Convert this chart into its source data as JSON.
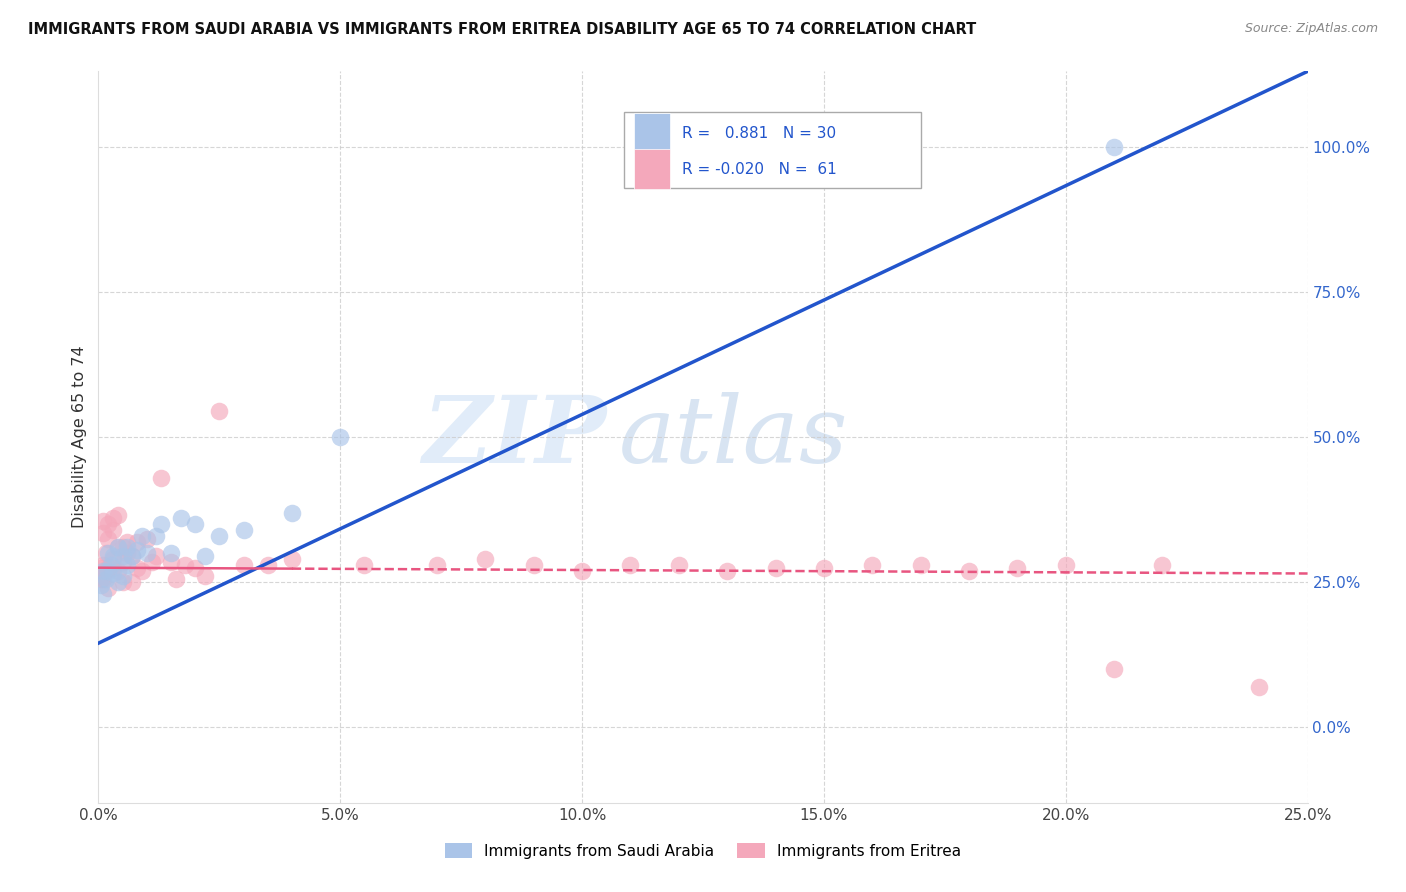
{
  "title": "IMMIGRANTS FROM SAUDI ARABIA VS IMMIGRANTS FROM ERITREA DISABILITY AGE 65 TO 74 CORRELATION CHART",
  "source": "Source: ZipAtlas.com",
  "ylabel": "Disability Age 65 to 74",
  "legend_label_blue": "Immigrants from Saudi Arabia",
  "legend_label_pink": "Immigrants from Eritrea",
  "R_blue": 0.881,
  "N_blue": 30,
  "R_pink": -0.02,
  "N_pink": 61,
  "color_blue": "#aac4e8",
  "color_pink": "#f4a8bb",
  "line_color_blue": "#2255cc",
  "line_color_pink": "#e85580",
  "xmin": 0.0,
  "xmax": 0.25,
  "ymin": -0.13,
  "ymax": 1.13,
  "watermark_zip": "ZIP",
  "watermark_atlas": "atlas",
  "ytick_positions": [
    0.0,
    0.25,
    0.5,
    0.75,
    1.0
  ],
  "ytick_labels": [
    "0.0%",
    "25.0%",
    "50.0%",
    "75.0%",
    "100.0%"
  ],
  "xtick_positions": [
    0.0,
    0.05,
    0.1,
    0.15,
    0.2,
    0.25
  ],
  "xtick_labels": [
    "0.0%",
    "5.0%",
    "10.0%",
    "15.0%",
    "20.0%",
    "25.0%"
  ],
  "background_color": "#ffffff",
  "grid_color": "#cccccc",
  "blue_line_x0": 0.0,
  "blue_line_y0": 0.145,
  "blue_line_x1": 0.25,
  "blue_line_y1": 1.13,
  "pink_line_x0": 0.0,
  "pink_line_y0": 0.275,
  "pink_line_x1": 0.25,
  "pink_line_y1": 0.265,
  "blue_x": [
    0.0005,
    0.001,
    0.001,
    0.0015,
    0.002,
    0.002,
    0.0025,
    0.003,
    0.003,
    0.004,
    0.004,
    0.005,
    0.005,
    0.006,
    0.006,
    0.007,
    0.008,
    0.009,
    0.01,
    0.012,
    0.013,
    0.015,
    0.017,
    0.02,
    0.022,
    0.025,
    0.03,
    0.04,
    0.05,
    0.21
  ],
  "blue_y": [
    0.245,
    0.27,
    0.23,
    0.255,
    0.3,
    0.27,
    0.28,
    0.295,
    0.265,
    0.31,
    0.25,
    0.295,
    0.26,
    0.31,
    0.28,
    0.295,
    0.305,
    0.33,
    0.3,
    0.33,
    0.35,
    0.3,
    0.36,
    0.35,
    0.295,
    0.33,
    0.34,
    0.37,
    0.5,
    1.0
  ],
  "pink_x": [
    0.0003,
    0.0005,
    0.0005,
    0.001,
    0.001,
    0.001,
    0.001,
    0.0015,
    0.0015,
    0.002,
    0.002,
    0.002,
    0.002,
    0.003,
    0.003,
    0.003,
    0.003,
    0.004,
    0.004,
    0.004,
    0.005,
    0.005,
    0.005,
    0.006,
    0.006,
    0.007,
    0.007,
    0.008,
    0.008,
    0.009,
    0.01,
    0.011,
    0.012,
    0.013,
    0.015,
    0.016,
    0.018,
    0.02,
    0.022,
    0.025,
    0.03,
    0.035,
    0.04,
    0.055,
    0.07,
    0.08,
    0.09,
    0.1,
    0.11,
    0.12,
    0.13,
    0.14,
    0.15,
    0.16,
    0.17,
    0.18,
    0.19,
    0.2,
    0.21,
    0.22,
    0.24
  ],
  "pink_y": [
    0.26,
    0.275,
    0.255,
    0.335,
    0.355,
    0.28,
    0.255,
    0.3,
    0.27,
    0.35,
    0.325,
    0.275,
    0.24,
    0.29,
    0.275,
    0.34,
    0.36,
    0.31,
    0.27,
    0.365,
    0.31,
    0.285,
    0.25,
    0.32,
    0.3,
    0.295,
    0.25,
    0.32,
    0.275,
    0.27,
    0.325,
    0.285,
    0.295,
    0.43,
    0.285,
    0.255,
    0.28,
    0.275,
    0.26,
    0.545,
    0.28,
    0.28,
    0.29,
    0.28,
    0.28,
    0.29,
    0.28,
    0.27,
    0.28,
    0.28,
    0.27,
    0.275,
    0.275,
    0.28,
    0.28,
    0.27,
    0.275,
    0.28,
    0.1,
    0.28,
    0.07
  ]
}
